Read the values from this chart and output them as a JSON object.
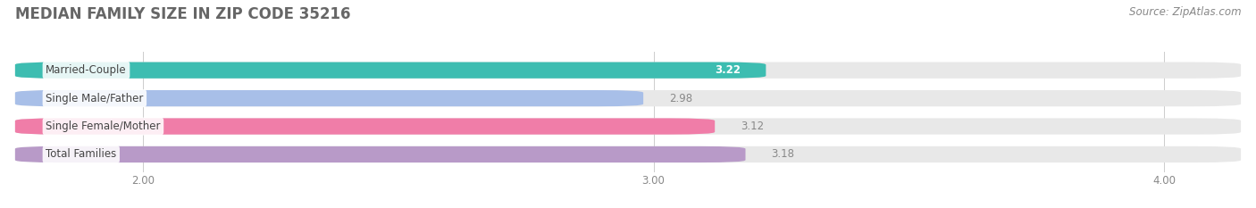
{
  "title": "MEDIAN FAMILY SIZE IN ZIP CODE 35216",
  "source": "Source: ZipAtlas.com",
  "categories": [
    "Married-Couple",
    "Single Male/Father",
    "Single Female/Mother",
    "Total Families"
  ],
  "values": [
    3.22,
    2.98,
    3.12,
    3.18
  ],
  "bar_colors": [
    "#3dbdb1",
    "#a8bfe8",
    "#f07da8",
    "#b89ac8"
  ],
  "bar_bg_color": "#e8e8e8",
  "xlim_min": 1.75,
  "xlim_max": 4.15,
  "xticks": [
    2.0,
    3.0,
    4.0
  ],
  "xtick_labels": [
    "2.00",
    "3.00",
    "4.00"
  ],
  "title_color": "#666666",
  "source_color": "#888888",
  "label_color": "#444444",
  "value_color_inside": "#ffffff",
  "value_color_outside": "#888888",
  "title_fontsize": 12,
  "source_fontsize": 8.5,
  "label_fontsize": 8.5,
  "value_fontsize": 8.5,
  "tick_fontsize": 8.5,
  "bar_height": 0.58,
  "background_color": "#ffffff"
}
